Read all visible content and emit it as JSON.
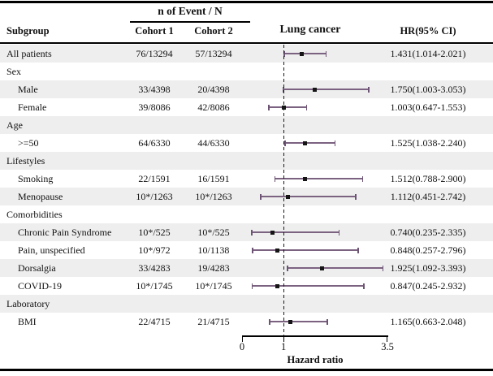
{
  "header": {
    "events_title": "n of Event / N",
    "subgroup": "Subgroup",
    "cohort1": "Cohort 1",
    "cohort2": "Cohort 2",
    "plot_title": "Lung cancer",
    "hr_ci": "HR(95% CI)"
  },
  "axis": {
    "label": "Hazard ratio",
    "tick_labels": [
      "0",
      "1",
      "3.5"
    ]
  },
  "colors": {
    "ci_line": "#7b6280",
    "ci_cap": "#6d5475",
    "marker": "#151515",
    "stripe": "#eeeeee",
    "rule": "#000000"
  },
  "chart_data": {
    "type": "forest",
    "title": "Lung cancer",
    "xlabel": "Hazard ratio",
    "xlim": [
      0,
      3.5
    ],
    "xticks": [
      0,
      1,
      3.5
    ],
    "reference_line": 1,
    "rows": [
      {
        "kind": "item",
        "label": "All patients",
        "indent": 0,
        "cohort1": "76/13294",
        "cohort2": "57/13294",
        "hr": 1.431,
        "lo": 1.014,
        "hi": 2.021,
        "hr_text": "1.431(1.014-2.021)"
      },
      {
        "kind": "group",
        "label": "Sex"
      },
      {
        "kind": "item",
        "label": "Male",
        "indent": 1,
        "cohort1": "33/4398",
        "cohort2": "20/4398",
        "hr": 1.75,
        "lo": 1.003,
        "hi": 3.053,
        "hr_text": "1.750(1.003-3.053)"
      },
      {
        "kind": "item",
        "label": "Female",
        "indent": 1,
        "cohort1": "39/8086",
        "cohort2": "42/8086",
        "hr": 1.003,
        "lo": 0.647,
        "hi": 1.553,
        "hr_text": "1.003(0.647-1.553)"
      },
      {
        "kind": "group",
        "label": "Age"
      },
      {
        "kind": "item",
        "label": ">=50",
        "indent": 1,
        "cohort1": "64/6330",
        "cohort2": "44/6330",
        "hr": 1.525,
        "lo": 1.038,
        "hi": 2.24,
        "hr_text": "1.525(1.038-2.240)"
      },
      {
        "kind": "group",
        "label": "Lifestyles"
      },
      {
        "kind": "item",
        "label": "Smoking",
        "indent": 1,
        "cohort1": "22/1591",
        "cohort2": "16/1591",
        "hr": 1.512,
        "lo": 0.788,
        "hi": 2.9,
        "hr_text": "1.512(0.788-2.900)"
      },
      {
        "kind": "item",
        "label": "Menopause",
        "indent": 1,
        "cohort1": "10*/1263",
        "cohort2": "10*/1263",
        "hr": 1.112,
        "lo": 0.451,
        "hi": 2.742,
        "hr_text": "1.112(0.451-2.742)"
      },
      {
        "kind": "group",
        "label": "Comorbidities"
      },
      {
        "kind": "item",
        "label": "Chronic Pain Syndrome",
        "indent": 1,
        "cohort1": "10*/525",
        "cohort2": "10*/525",
        "hr": 0.74,
        "lo": 0.235,
        "hi": 2.335,
        "hr_text": "0.740(0.235-2.335)"
      },
      {
        "kind": "item",
        "label": "Pain, unspecified",
        "indent": 1,
        "cohort1": "10*/972",
        "cohort2": "10/1138",
        "hr": 0.848,
        "lo": 0.257,
        "hi": 2.796,
        "hr_text": "0.848(0.257-2.796)"
      },
      {
        "kind": "item",
        "label": "Dorsalgia",
        "indent": 1,
        "cohort1": "33/4283",
        "cohort2": "19/4283",
        "hr": 1.925,
        "lo": 1.092,
        "hi": 3.393,
        "hr_text": "1.925(1.092-3.393)"
      },
      {
        "kind": "item",
        "label": "COVID-19",
        "indent": 1,
        "cohort1": "10*/1745",
        "cohort2": "10*/1745",
        "hr": 0.847,
        "lo": 0.245,
        "hi": 2.932,
        "hr_text": "0.847(0.245-2.932)"
      },
      {
        "kind": "group",
        "label": "Laboratory"
      },
      {
        "kind": "item",
        "label": "BMI",
        "indent": 1,
        "cohort1": "22/4715",
        "cohort2": "21/4715",
        "hr": 1.165,
        "lo": 0.663,
        "hi": 2.048,
        "hr_text": "1.165(0.663-2.048)"
      }
    ]
  }
}
